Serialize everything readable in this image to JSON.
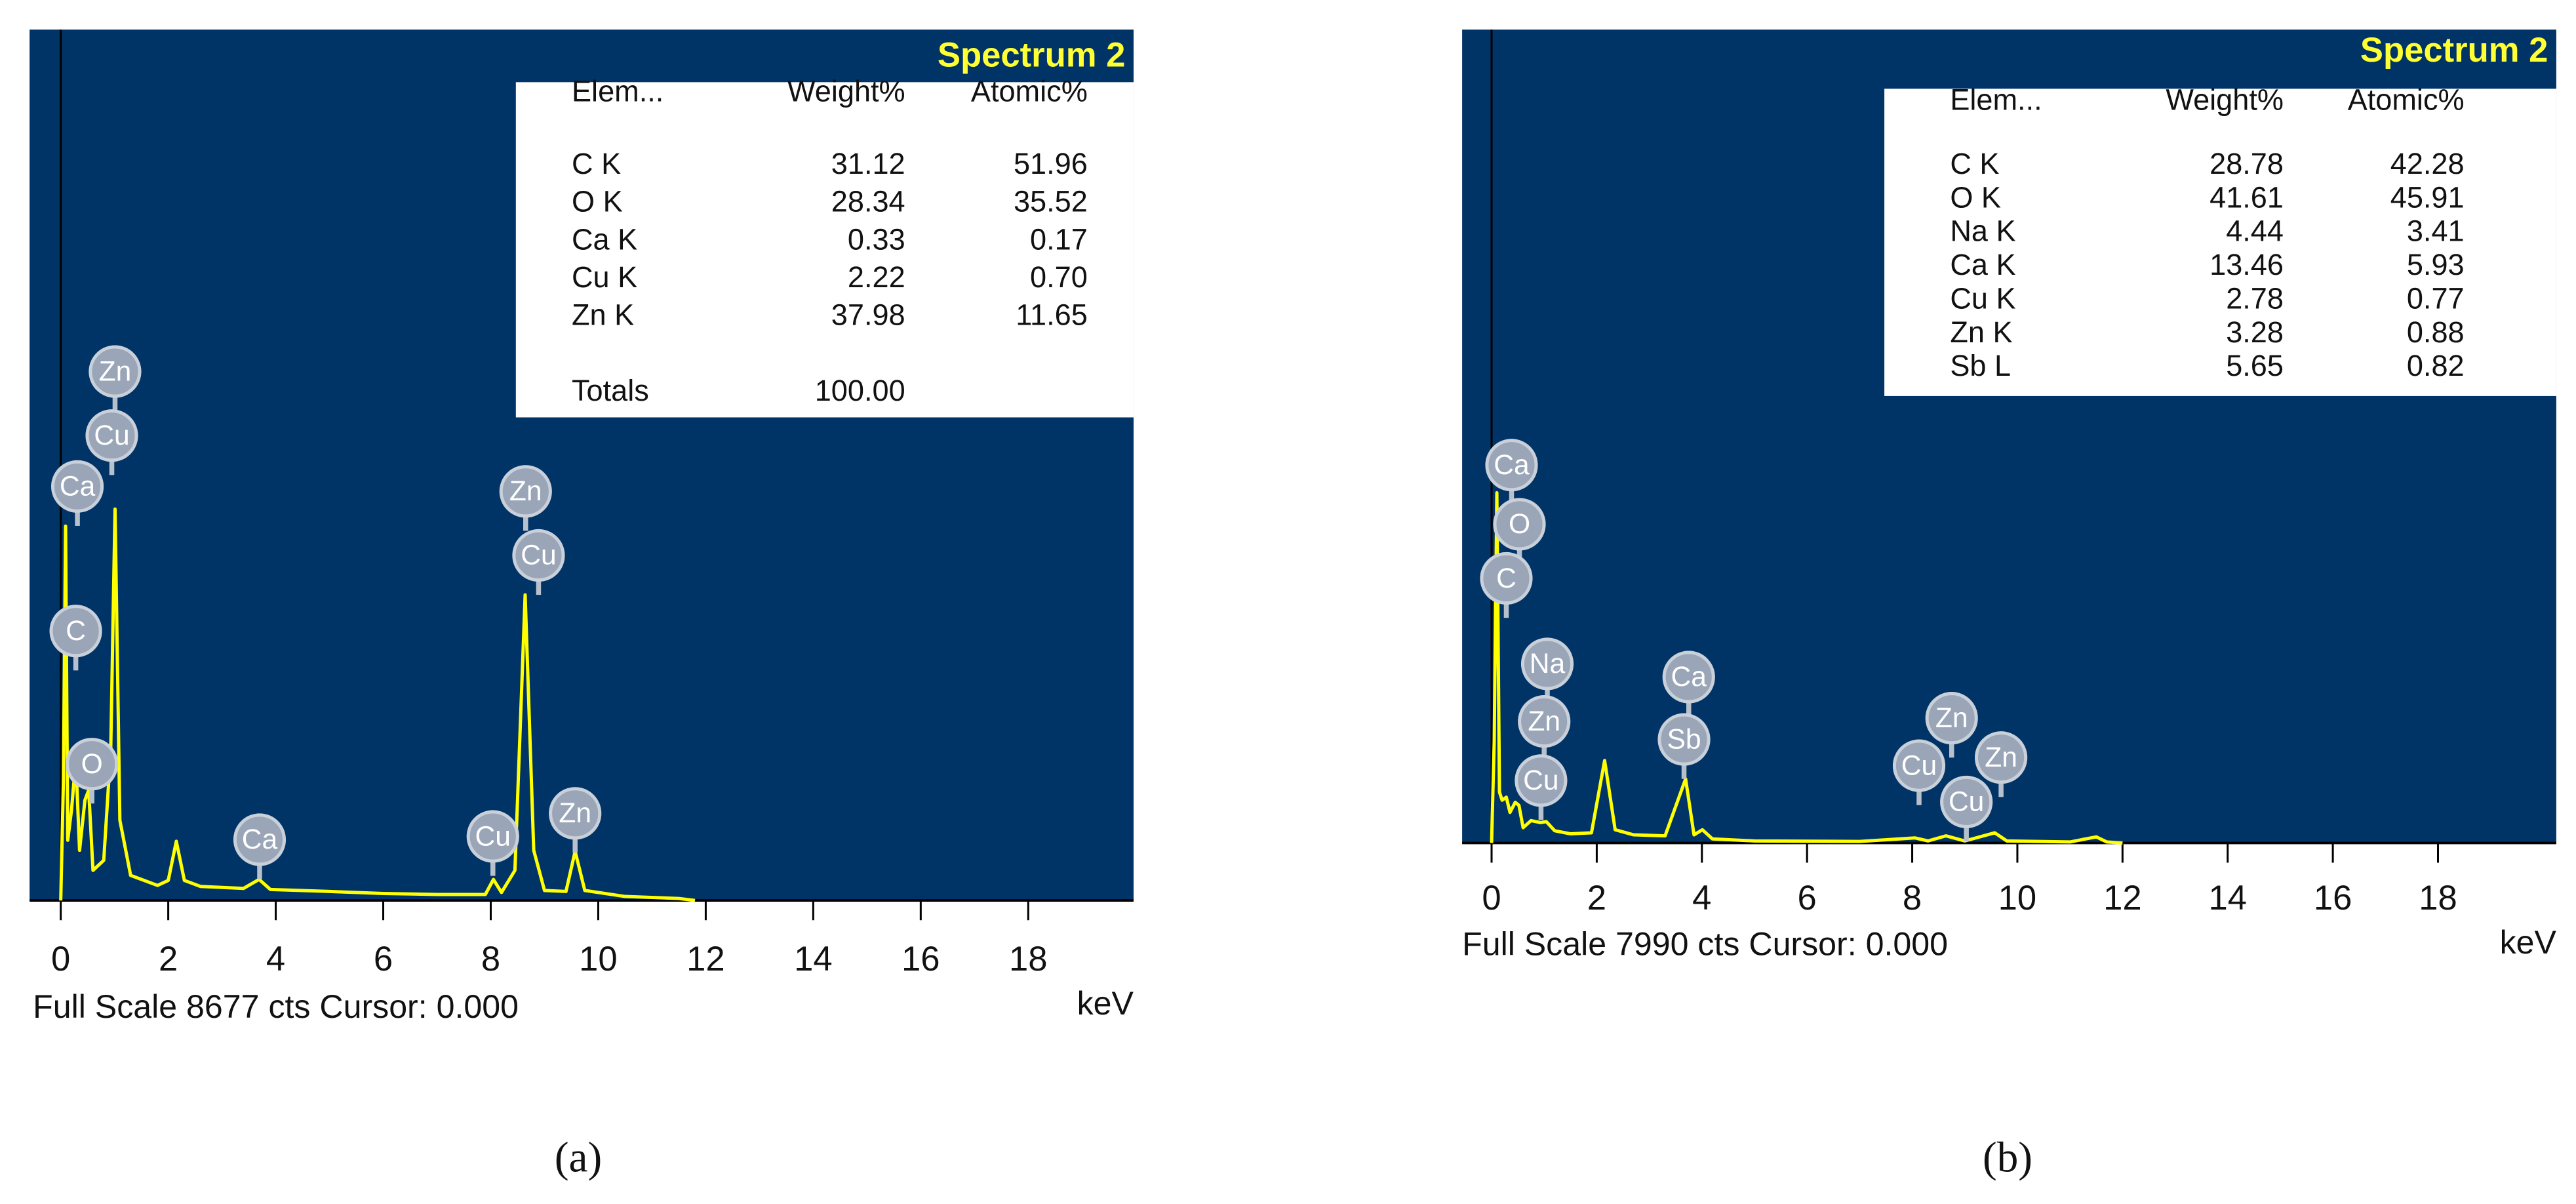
{
  "chart_data": [
    {
      "type": "line",
      "title": "Spectrum 2",
      "panel_label": "(a)",
      "footer": "Full Scale 8677 cts Cursor: 0.000",
      "xlabel": "keV",
      "color": "#ffff00",
      "background": "#003366",
      "xlim": [
        -0.58,
        19.96
      ],
      "xticks": [
        0,
        2,
        4,
        6,
        8,
        10,
        12,
        14,
        16,
        18
      ],
      "ylim": [
        0,
        8677
      ],
      "x": [
        0,
        0.05,
        0.09,
        0.13,
        0.2,
        0.28,
        0.35,
        0.45,
        0.52,
        0.6,
        0.8,
        0.93,
        1.01,
        1.1,
        1.3,
        1.8,
        2.0,
        2.15,
        2.3,
        2.6,
        3.4,
        3.69,
        3.9,
        5,
        6,
        7,
        7.9,
        8.05,
        8.2,
        8.45,
        8.64,
        8.8,
        9.0,
        9.4,
        9.57,
        9.75,
        10.5,
        11.5,
        11.8
      ],
      "values": [
        0,
        1200,
        3730,
        600,
        900,
        1400,
        500,
        1000,
        1100,
        300,
        400,
        1500,
        3900,
        800,
        250,
        150,
        200,
        590,
        200,
        140,
        120,
        210,
        110,
        90,
        70,
        60,
        60,
        210,
        80,
        300,
        3045,
        500,
        100,
        90,
        490,
        100,
        40,
        20,
        0
      ],
      "annotations": [
        {
          "label": "Zn",
          "x": 1.01,
          "y": 5270
        },
        {
          "label": "Cu",
          "x": 0.95,
          "y": 4632
        },
        {
          "label": "Ca",
          "x": 0.31,
          "y": 4125
        },
        {
          "label": "C",
          "x": 0.28,
          "y": 2685
        },
        {
          "label": "O",
          "x": 0.58,
          "y": 1359
        },
        {
          "label": "Ca",
          "x": 3.7,
          "y": 606
        },
        {
          "label": "Zn",
          "x": 8.65,
          "y": 4076
        },
        {
          "label": "Cu",
          "x": 8.89,
          "y": 3438
        },
        {
          "label": "Cu",
          "x": 8.04,
          "y": 638
        },
        {
          "label": "Zn",
          "x": 9.57,
          "y": 868
        }
      ],
      "table": {
        "columns": [
          "Elem...",
          "Weight%",
          "Atomic%"
        ],
        "rows": [
          [
            "C K",
            "31.12",
            "51.96"
          ],
          [
            "O K",
            "28.34",
            "35.52"
          ],
          [
            "Ca K",
            "0.33",
            "0.17"
          ],
          [
            "Cu K",
            "2.22",
            "0.70"
          ],
          [
            "Zn K",
            "37.98",
            "11.65"
          ],
          [
            "Totals",
            "100.00"
          ]
        ]
      }
    },
    {
      "type": "line",
      "title": "Spectrum 2",
      "panel_label": "(b)",
      "footer": "Full Scale 7990 cts Cursor: 0.000",
      "xlabel": "keV",
      "color": "#ffff00",
      "background": "#003366",
      "xlim": [
        -0.56,
        20.25
      ],
      "xticks": [
        0,
        2,
        4,
        6,
        8,
        10,
        12,
        14,
        16,
        18
      ],
      "ylim": [
        0,
        7990
      ],
      "x": [
        0,
        0.05,
        0.1,
        0.15,
        0.2,
        0.28,
        0.35,
        0.45,
        0.52,
        0.6,
        0.75,
        0.93,
        1.04,
        1.2,
        1.5,
        1.9,
        2.15,
        2.35,
        2.7,
        3.3,
        3.69,
        3.85,
        4.01,
        4.2,
        5,
        7,
        8.05,
        8.3,
        8.64,
        9.0,
        9.57,
        9.8,
        11.0,
        11.5,
        11.7,
        12
      ],
      "values": [
        0,
        1000,
        3440,
        500,
        420,
        450,
        300,
        400,
        370,
        150,
        220,
        200,
        210,
        120,
        90,
        100,
        810,
        130,
        80,
        70,
        630,
        80,
        130,
        40,
        20,
        15,
        50,
        20,
        70,
        20,
        100,
        20,
        10,
        60,
        10,
        0
      ],
      "annotations": [
        {
          "label": "Ca",
          "x": 0.38,
          "y": 3712
        },
        {
          "label": "O",
          "x": 0.53,
          "y": 3131
        },
        {
          "label": "C",
          "x": 0.28,
          "y": 2599
        },
        {
          "label": "Na",
          "x": 1.06,
          "y": 1759
        },
        {
          "label": "Zn",
          "x": 1.0,
          "y": 1194
        },
        {
          "label": "Cu",
          "x": 0.94,
          "y": 613
        },
        {
          "label": "Ca",
          "x": 3.75,
          "y": 1630
        },
        {
          "label": "Sb",
          "x": 3.66,
          "y": 1017
        },
        {
          "label": "Zn",
          "x": 8.75,
          "y": 1226
        },
        {
          "label": "Cu",
          "x": 8.13,
          "y": 759
        },
        {
          "label": "Cu",
          "x": 9.03,
          "y": 403
        },
        {
          "label": "Zn",
          "x": 9.69,
          "y": 839
        }
      ],
      "table": {
        "columns": [
          "Elem...",
          "Weight%",
          "Atomic%"
        ],
        "rows": [
          [
            "C K",
            "28.78",
            "42.28"
          ],
          [
            "O K",
            "41.61",
            "45.91"
          ],
          [
            "Na K",
            "4.44",
            "3.41"
          ],
          [
            "Ca K",
            "13.46",
            "5.93"
          ],
          [
            "Cu K",
            "2.78",
            "0.77"
          ],
          [
            "Zn K",
            "3.28",
            "0.88"
          ],
          [
            "Sb L",
            "5.65",
            "0.82"
          ]
        ]
      }
    }
  ]
}
